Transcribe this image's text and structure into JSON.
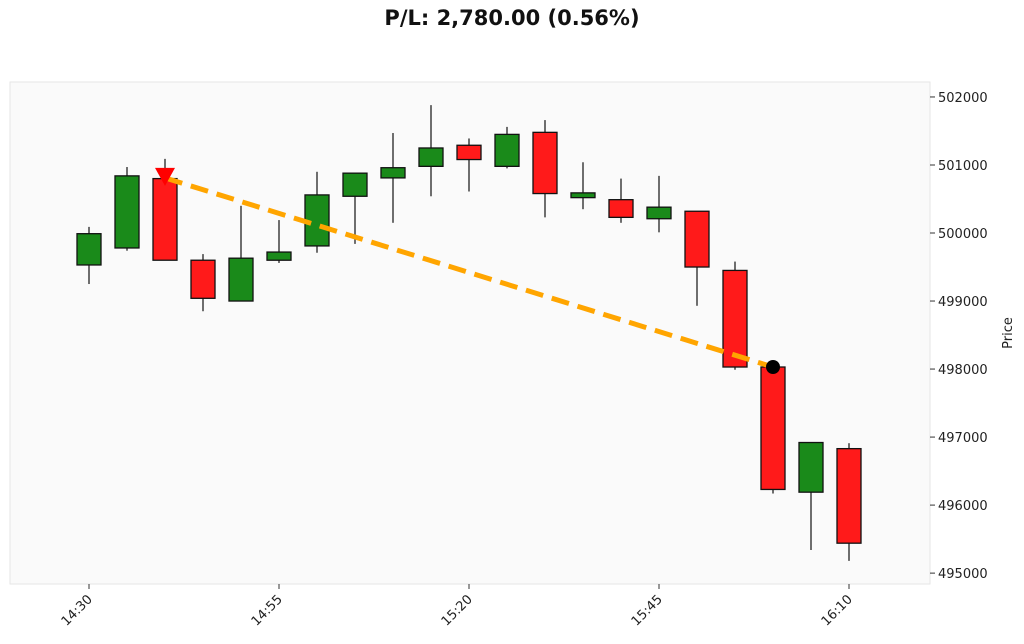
{
  "chart_data": {
    "type": "candlestick",
    "title": "P/L: 2,780.00 (0.56%)",
    "xlabel": "",
    "ylabel": "Price",
    "ylim": [
      494840,
      502220
    ],
    "yticks": [
      495000,
      496000,
      497000,
      498000,
      499000,
      500000,
      501000,
      502000
    ],
    "xtick_labels": [
      "14:30",
      "14:55",
      "15:20",
      "15:45",
      "16:10"
    ],
    "grid": false,
    "colors": {
      "up": "#1a8a1a",
      "down": "#ff1a1a",
      "trade_line": "#ffa500",
      "entry_marker": "#ff0000",
      "exit_marker": "#000000",
      "background": "#fafafa"
    },
    "candles": [
      {
        "time": "14:30",
        "open": 499530,
        "high": 500090,
        "low": 499250,
        "close": 499990
      },
      {
        "time": "14:35",
        "open": 499780,
        "high": 500970,
        "low": 499740,
        "close": 500840
      },
      {
        "time": "14:40",
        "open": 500800,
        "high": 501090,
        "low": 499600,
        "close": 499600
      },
      {
        "time": "14:45",
        "open": 499600,
        "high": 499690,
        "low": 498850,
        "close": 499040
      },
      {
        "time": "14:50",
        "open": 499000,
        "high": 500400,
        "low": 499000,
        "close": 499630
      },
      {
        "time": "14:55",
        "open": 499600,
        "high": 500190,
        "low": 499560,
        "close": 499720
      },
      {
        "time": "15:00",
        "open": 499810,
        "high": 500900,
        "low": 499710,
        "close": 500560
      },
      {
        "time": "15:05",
        "open": 500540,
        "high": 500880,
        "low": 499840,
        "close": 500880
      },
      {
        "time": "15:10",
        "open": 500810,
        "high": 501470,
        "low": 500150,
        "close": 500960
      },
      {
        "time": "15:15",
        "open": 500980,
        "high": 501880,
        "low": 500540,
        "close": 501250
      },
      {
        "time": "15:20",
        "open": 501290,
        "high": 501390,
        "low": 500610,
        "close": 501080
      },
      {
        "time": "15:25",
        "open": 500980,
        "high": 501560,
        "low": 500950,
        "close": 501450
      },
      {
        "time": "15:30",
        "open": 501480,
        "high": 501660,
        "low": 500230,
        "close": 500580
      },
      {
        "time": "15:35",
        "open": 500520,
        "high": 501040,
        "low": 500350,
        "close": 500590
      },
      {
        "time": "15:40",
        "open": 500490,
        "high": 500800,
        "low": 500150,
        "close": 500230
      },
      {
        "time": "15:45",
        "open": 500210,
        "high": 500840,
        "low": 500010,
        "close": 500380
      },
      {
        "time": "15:50",
        "open": 500320,
        "high": 500320,
        "low": 498930,
        "close": 499500
      },
      {
        "time": "15:55",
        "open": 499450,
        "high": 499580,
        "low": 497990,
        "close": 498030
      },
      {
        "time": "16:00",
        "open": 498030,
        "high": 498030,
        "low": 496170,
        "close": 496230
      },
      {
        "time": "16:05",
        "open": 496190,
        "high": 496920,
        "low": 495340,
        "close": 496920
      },
      {
        "time": "16:10",
        "open": 496830,
        "high": 496910,
        "low": 495180,
        "close": 495440
      }
    ],
    "trade": {
      "entry": {
        "time": "14:40",
        "price": 500810,
        "marker": "triangle-down"
      },
      "exit": {
        "time": "16:00",
        "price": 498030,
        "marker": "circle"
      },
      "line_style": "dashed"
    }
  }
}
